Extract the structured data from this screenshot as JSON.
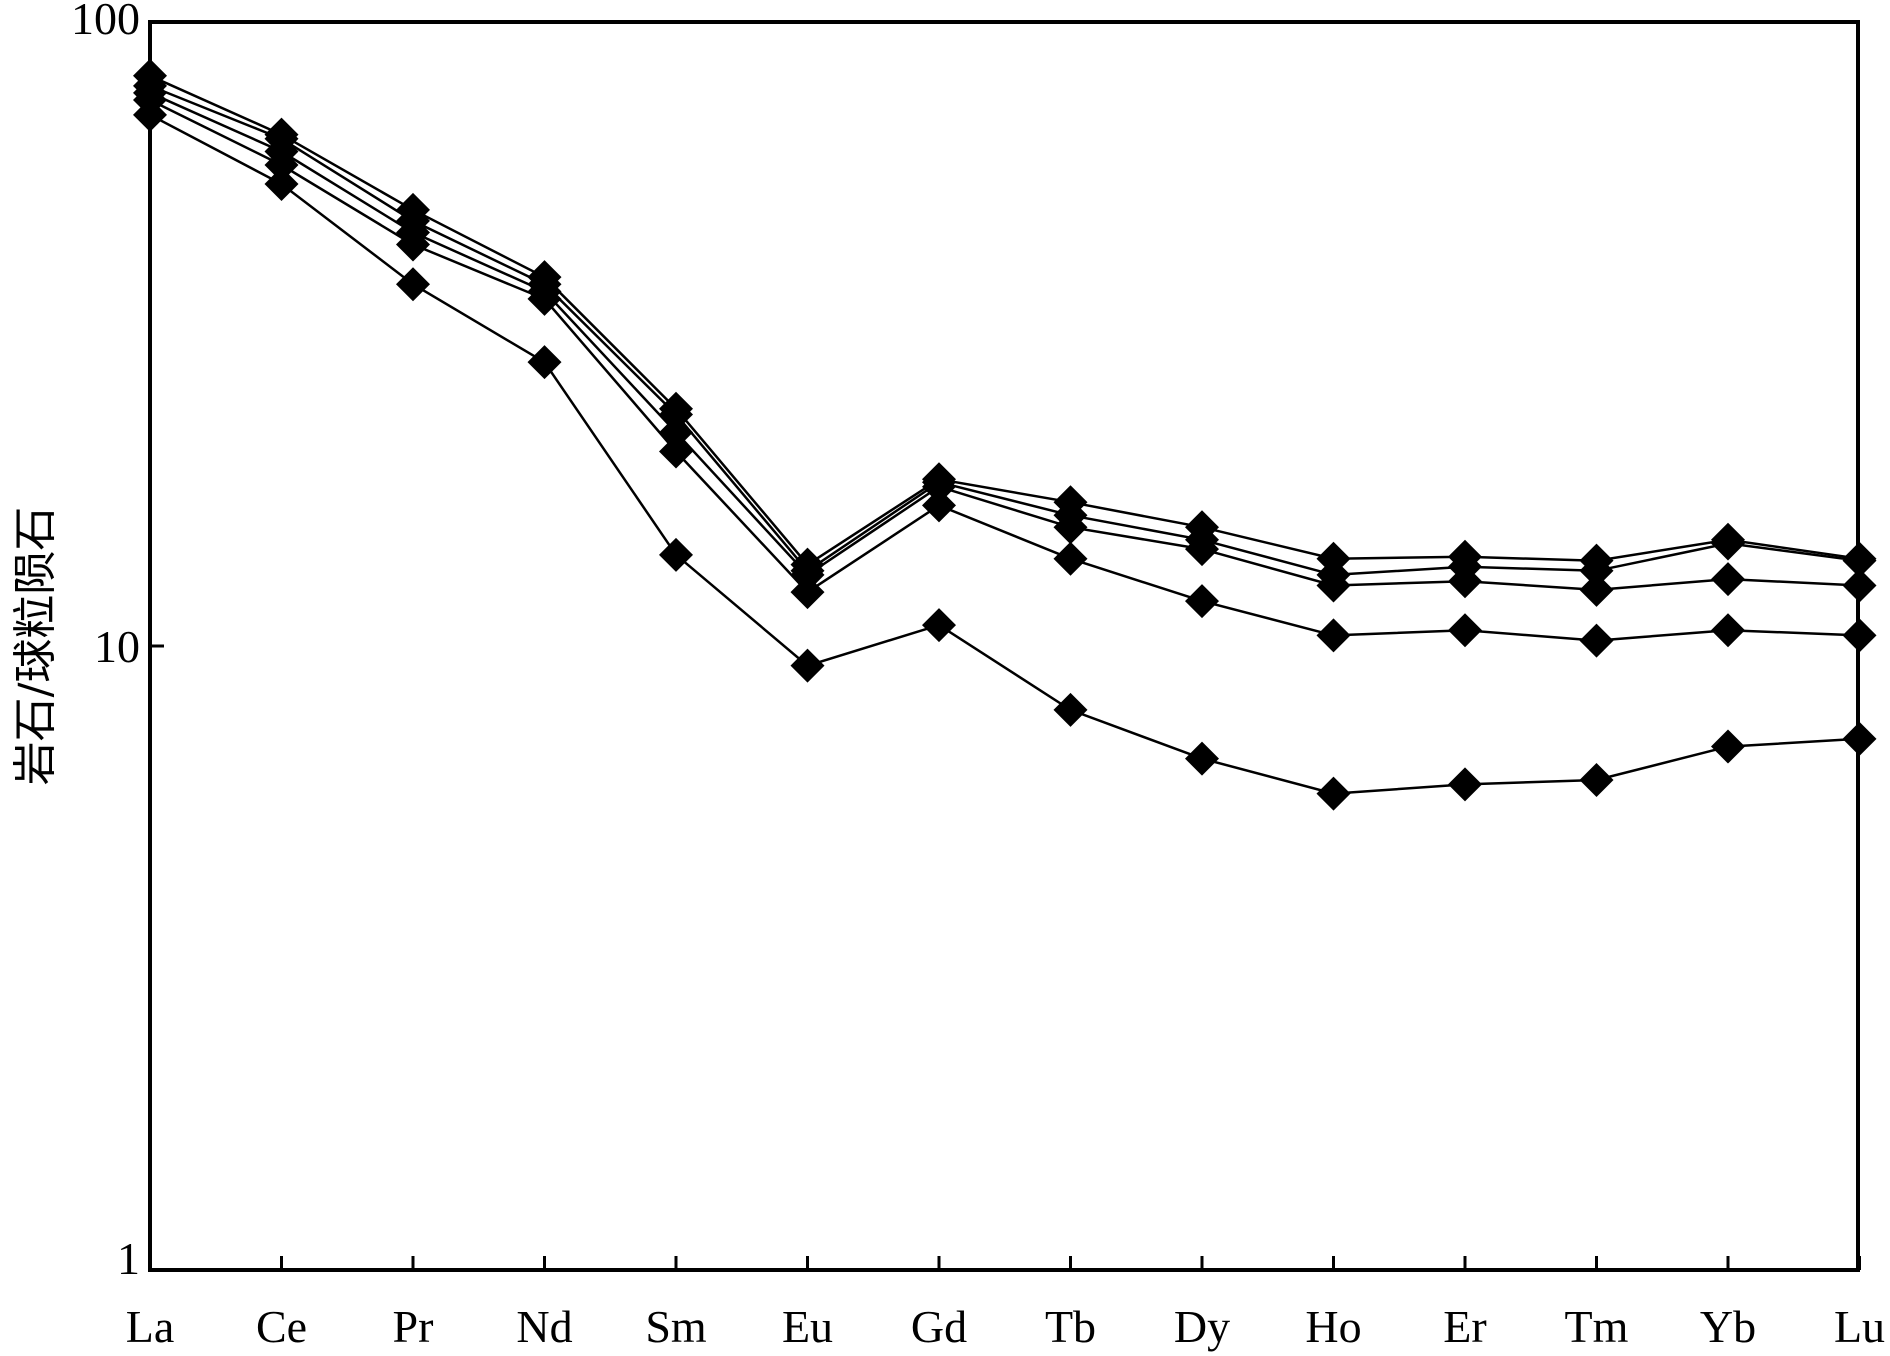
{
  "chart_data": {
    "type": "line",
    "title": "",
    "xlabel": "",
    "ylabel": "岩石/球粒陨石",
    "y_scale": "log",
    "ylim": [
      1,
      100
    ],
    "yticks": [
      {
        "value": 1,
        "label": "1"
      },
      {
        "value": 10,
        "label": "10"
      },
      {
        "value": 100,
        "label": "100"
      }
    ],
    "categories": [
      "La",
      "Ce",
      "Pr",
      "Nd",
      "Sm",
      "Eu",
      "Gd",
      "Tb",
      "Dy",
      "Ho",
      "Er",
      "Tm",
      "Yb",
      "Lu"
    ],
    "marker": "diamond",
    "grid": false,
    "legend": "none",
    "series": [
      {
        "values": [
          82,
          66,
          50,
          39,
          24,
          13.5,
          18.5,
          17,
          15.5,
          13.8,
          13.9,
          13.7,
          14.8,
          13.8
        ]
      },
      {
        "values": [
          79,
          65,
          48,
          38,
          23.5,
          13.2,
          18.3,
          16.2,
          14.8,
          13.0,
          13.4,
          13.2,
          14.6,
          13.7
        ]
      },
      {
        "values": [
          77,
          62,
          46,
          37,
          22,
          13.0,
          18.0,
          15.5,
          14.3,
          12.5,
          12.7,
          12.3,
          12.8,
          12.5
        ]
      },
      {
        "values": [
          75,
          59,
          44,
          36,
          20.5,
          12.2,
          16.8,
          13.8,
          11.8,
          10.4,
          10.6,
          10.2,
          10.6,
          10.4
        ]
      },
      {
        "values": [
          71,
          55,
          38,
          28.5,
          14,
          9.3,
          10.8,
          7.9,
          6.6,
          5.8,
          6.0,
          6.1,
          6.9,
          7.1
        ]
      }
    ]
  }
}
